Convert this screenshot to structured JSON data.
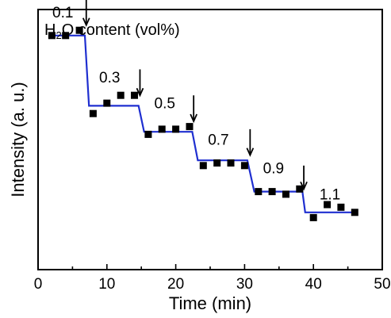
{
  "chart_data": {
    "type": "scatter",
    "title": "H2O content (vol%)",
    "title_parts": {
      "prefix": "H",
      "subscript": "2",
      "suffix": "O content (vol%)"
    },
    "xlabel": "Time (min)",
    "ylabel": "Intensity (a. u.)",
    "xlim": [
      0,
      50
    ],
    "ylim": [
      0,
      100
    ],
    "xticks": [
      0,
      10,
      20,
      30,
      40,
      50
    ],
    "yticks_shown": false,
    "grid": false,
    "series": [
      {
        "kind": "scatter",
        "marker": "square",
        "color": "#000000",
        "points": [
          {
            "x": 2,
            "y": 90
          },
          {
            "x": 4,
            "y": 90
          },
          {
            "x": 6,
            "y": 92
          },
          {
            "x": 8,
            "y": 60
          },
          {
            "x": 10,
            "y": 64
          },
          {
            "x": 12,
            "y": 67
          },
          {
            "x": 14,
            "y": 67
          },
          {
            "x": 16,
            "y": 52
          },
          {
            "x": 18,
            "y": 54
          },
          {
            "x": 20,
            "y": 54
          },
          {
            "x": 22,
            "y": 55
          },
          {
            "x": 24,
            "y": 40
          },
          {
            "x": 26,
            "y": 41
          },
          {
            "x": 28,
            "y": 41
          },
          {
            "x": 30,
            "y": 40
          },
          {
            "x": 32,
            "y": 30
          },
          {
            "x": 34,
            "y": 30
          },
          {
            "x": 36,
            "y": 29
          },
          {
            "x": 38,
            "y": 31
          },
          {
            "x": 40,
            "y": 20
          },
          {
            "x": 42,
            "y": 25
          },
          {
            "x": 44,
            "y": 24
          },
          {
            "x": 46,
            "y": 22
          }
        ]
      },
      {
        "kind": "step-line",
        "color": "#1f2fd0",
        "points": [
          {
            "x": 2,
            "y": 90
          },
          {
            "x": 6.8,
            "y": 90
          },
          {
            "x": 7.4,
            "y": 63
          },
          {
            "x": 14.6,
            "y": 63
          },
          {
            "x": 15.4,
            "y": 53
          },
          {
            "x": 22.4,
            "y": 53
          },
          {
            "x": 23.2,
            "y": 42
          },
          {
            "x": 30.4,
            "y": 42
          },
          {
            "x": 31.4,
            "y": 30
          },
          {
            "x": 38.4,
            "y": 30
          },
          {
            "x": 38.8,
            "y": 22
          },
          {
            "x": 46,
            "y": 22
          }
        ]
      }
    ],
    "annotations": [
      {
        "text": "0.1",
        "x": 3.6,
        "y": 97
      },
      {
        "text": "0.3",
        "x": 10.4,
        "y": 72
      },
      {
        "text": "0.5",
        "x": 18.4,
        "y": 62
      },
      {
        "text": "0.7",
        "x": 26.2,
        "y": 48
      },
      {
        "text": "0.9",
        "x": 34.2,
        "y": 37
      },
      {
        "text": "1.1",
        "x": 42.4,
        "y": 27
      }
    ],
    "arrows": [
      {
        "x": 7.0,
        "y_top": 105,
        "y_bottom": 94
      },
      {
        "x": 14.8,
        "y_top": 77,
        "y_bottom": 67
      },
      {
        "x": 22.6,
        "y_top": 67,
        "y_bottom": 57
      },
      {
        "x": 30.8,
        "y_top": 54,
        "y_bottom": 44
      },
      {
        "x": 38.6,
        "y_top": 40,
        "y_bottom": 31
      }
    ]
  }
}
